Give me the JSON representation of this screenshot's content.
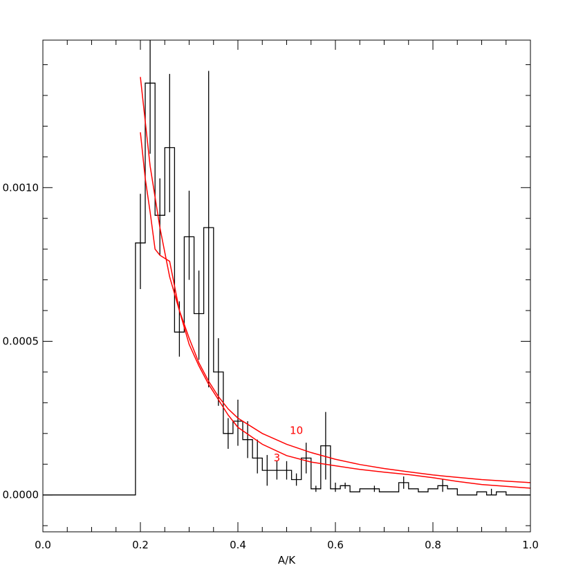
{
  "chart_data": {
    "type": "line",
    "title": "",
    "xlabel": "A/K",
    "ylabel": "",
    "xlim": [
      0.0,
      1.0
    ],
    "ylim": [
      -0.00012,
      0.00148
    ],
    "grid": false,
    "x_ticks": [
      {
        "value": 0.0,
        "label": "0.0"
      },
      {
        "value": 0.2,
        "label": "0.2"
      },
      {
        "value": 0.4,
        "label": "0.4"
      },
      {
        "value": 0.6,
        "label": "0.6"
      },
      {
        "value": 0.8,
        "label": "0.8"
      },
      {
        "value": 1.0,
        "label": "1.0"
      }
    ],
    "y_ticks": [
      {
        "value": 0.0,
        "label": "0.0000"
      },
      {
        "value": 0.0005,
        "label": "0.0005"
      },
      {
        "value": 0.001,
        "label": "0.0010"
      }
    ],
    "x_minor_step": 0.05,
    "y_minor_step": 0.0001,
    "colors": {
      "histogram": "#000000",
      "model": "#ff0000"
    },
    "histogram": {
      "edges": [
        0.0,
        0.19,
        0.2,
        0.21,
        0.23,
        0.25,
        0.27,
        0.29,
        0.31,
        0.33,
        0.35,
        0.37,
        0.39,
        0.41,
        0.43,
        0.45,
        0.47,
        0.49,
        0.51,
        0.53,
        0.55,
        0.57,
        0.59,
        0.61,
        0.63,
        0.65,
        0.67,
        0.69,
        0.71,
        0.73,
        0.75,
        0.77,
        0.79,
        0.81,
        0.83,
        0.85,
        0.87,
        0.89,
        0.91,
        0.93,
        0.95,
        0.97,
        1.0
      ],
      "values": [
        0.0,
        0.00082,
        0.00082,
        0.00134,
        0.00091,
        0.00113,
        0.00053,
        0.00084,
        0.00059,
        0.00087,
        0.0004,
        0.0002,
        0.00024,
        0.00018,
        0.00012,
        8e-05,
        8e-05,
        8e-05,
        5e-05,
        0.00012,
        2e-05,
        0.00016,
        2e-05,
        3e-05,
        1e-05,
        2e-05,
        2e-05,
        1e-05,
        1e-05,
        4e-05,
        2e-05,
        1e-05,
        2e-05,
        3e-05,
        2e-05,
        0.0,
        0.0,
        1e-05,
        0.0,
        1e-05,
        0.0,
        0.0
      ]
    },
    "error_bars": [
      {
        "x": 0.2,
        "low": 0.00067,
        "high": 0.00098
      },
      {
        "x": 0.22,
        "low": 0.00111,
        "high": 0.00148
      },
      {
        "x": 0.24,
        "low": 0.00078,
        "high": 0.00103
      },
      {
        "x": 0.26,
        "low": 0.00092,
        "high": 0.00137
      },
      {
        "x": 0.28,
        "low": 0.00045,
        "high": 0.00063
      },
      {
        "x": 0.3,
        "low": 0.0007,
        "high": 0.00099
      },
      {
        "x": 0.32,
        "low": 0.00044,
        "high": 0.00073
      },
      {
        "x": 0.34,
        "low": 0.00035,
        "high": 0.00138
      },
      {
        "x": 0.36,
        "low": 0.00029,
        "high": 0.00051
      },
      {
        "x": 0.38,
        "low": 0.00015,
        "high": 0.00025
      },
      {
        "x": 0.4,
        "low": 0.00016,
        "high": 0.00031
      },
      {
        "x": 0.42,
        "low": 0.00012,
        "high": 0.00024
      },
      {
        "x": 0.44,
        "low": 7e-05,
        "high": 0.00018
      },
      {
        "x": 0.46,
        "low": 3e-05,
        "high": 0.00013
      },
      {
        "x": 0.48,
        "low": 5e-05,
        "high": 0.00011
      },
      {
        "x": 0.5,
        "low": 5e-05,
        "high": 0.00011
      },
      {
        "x": 0.52,
        "low": 3e-05,
        "high": 7e-05
      },
      {
        "x": 0.54,
        "low": 7e-05,
        "high": 0.00017
      },
      {
        "x": 0.56,
        "low": 1e-05,
        "high": 3e-05
      },
      {
        "x": 0.58,
        "low": 5e-05,
        "high": 0.00027
      },
      {
        "x": 0.6,
        "low": 1e-05,
        "high": 4e-05
      },
      {
        "x": 0.62,
        "low": 2e-05,
        "high": 4e-05
      },
      {
        "x": 0.68,
        "low": 1e-05,
        "high": 3e-05
      },
      {
        "x": 0.74,
        "low": 2e-05,
        "high": 6e-05
      },
      {
        "x": 0.82,
        "low": 1e-05,
        "high": 5e-05
      },
      {
        "x": 0.92,
        "low": 0.0,
        "high": 2e-05
      }
    ],
    "series": [
      {
        "name": "10",
        "label_at": {
          "x": 0.52,
          "y": 0.000198
        },
        "x": [
          0.2,
          0.22,
          0.24,
          0.26,
          0.28,
          0.3,
          0.32,
          0.34,
          0.36,
          0.38,
          0.4,
          0.45,
          0.5,
          0.55,
          0.6,
          0.65,
          0.7,
          0.75,
          0.8,
          0.85,
          0.9,
          0.95,
          1.0
        ],
        "y": [
          0.00136,
          0.00107,
          0.00087,
          0.00071,
          0.0006,
          0.00051,
          0.00043,
          0.00037,
          0.00032,
          0.00028,
          0.00025,
          0.0002,
          0.000165,
          0.000138,
          0.000116,
          9.9e-05,
          8.6e-05,
          7.5e-05,
          6.5e-05,
          5.7e-05,
          5e-05,
          4.5e-05,
          4e-05
        ]
      },
      {
        "name": "3",
        "label_at": {
          "x": 0.48,
          "y": 0.00011
        },
        "x": [
          0.2,
          0.21,
          0.22,
          0.23,
          0.24,
          0.26,
          0.28,
          0.3,
          0.32,
          0.34,
          0.36,
          0.38,
          0.4,
          0.45,
          0.5,
          0.55,
          0.6,
          0.65,
          0.7,
          0.75,
          0.8,
          0.85,
          0.9,
          0.95,
          1.0
        ],
        "y": [
          0.00118,
          0.00103,
          0.00092,
          0.0008,
          0.00078,
          0.00076,
          0.0006,
          0.00049,
          0.00042,
          0.00036,
          0.00031,
          0.00026,
          0.00022,
          0.000165,
          0.000128,
          0.000107,
          9.5e-05,
          8.3e-05,
          7.4e-05,
          6.6e-05,
          5.6e-05,
          4.4e-05,
          3.4e-05,
          2.8e-05,
          2.2e-05
        ]
      }
    ]
  }
}
